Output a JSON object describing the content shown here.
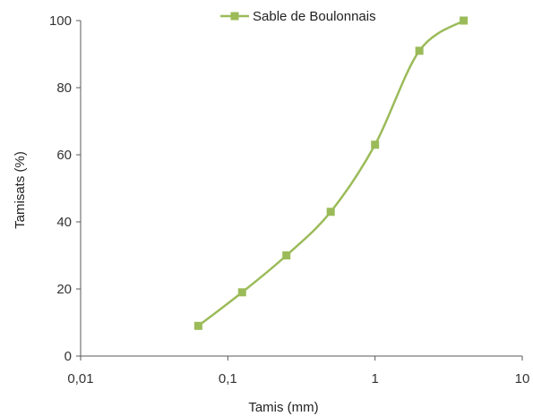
{
  "chart_data": {
    "type": "line",
    "title": "",
    "xlabel": "Tamis (mm)",
    "ylabel": "Tamisats (%)",
    "x_scale": "log",
    "xlim": [
      0.01,
      10
    ],
    "ylim": [
      0,
      100
    ],
    "x_ticks": [
      {
        "value": 0.01,
        "label": "0,01"
      },
      {
        "value": 0.1,
        "label": "0,1"
      },
      {
        "value": 1,
        "label": "1"
      },
      {
        "value": 10,
        "label": "10"
      }
    ],
    "y_ticks": [
      {
        "value": 0,
        "label": "0"
      },
      {
        "value": 20,
        "label": "20"
      },
      {
        "value": 40,
        "label": "40"
      },
      {
        "value": 60,
        "label": "60"
      },
      {
        "value": 80,
        "label": "80"
      },
      {
        "value": 100,
        "label": "100"
      }
    ],
    "grid": false,
    "legend": "top-center",
    "series": [
      {
        "name": "Sable de Boulonnais",
        "color": "#9bbb59",
        "marker": "square",
        "smooth": true,
        "points": [
          {
            "x": 0.063,
            "y": 9
          },
          {
            "x": 0.125,
            "y": 19
          },
          {
            "x": 0.25,
            "y": 30
          },
          {
            "x": 0.5,
            "y": 43
          },
          {
            "x": 1,
            "y": 63
          },
          {
            "x": 2,
            "y": 91
          },
          {
            "x": 4,
            "y": 100
          }
        ]
      }
    ]
  }
}
